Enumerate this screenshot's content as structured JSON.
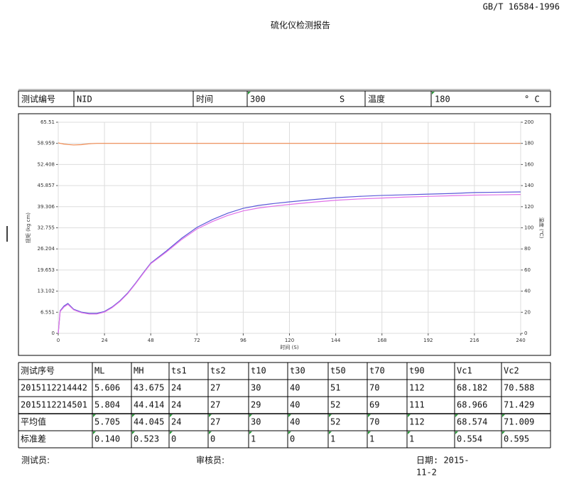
{
  "header": {
    "standard": "GB/T 16584-1996",
    "title": "硫化仪检测报告"
  },
  "info": {
    "cells": [
      "测试编号",
      "NID",
      "时间",
      "300",
      "S",
      "温度",
      "180",
      "° C"
    ]
  },
  "chart_data": {
    "type": "line",
    "xlabel": "时间 (S)",
    "ylabel": "扭矩 (kg cm)",
    "y2label": "温度 (℃)",
    "x": [
      0,
      1,
      3,
      5,
      8,
      12,
      16,
      20,
      24,
      28,
      32,
      36,
      40,
      44,
      48,
      56,
      64,
      72,
      80,
      88,
      96,
      104,
      112,
      120,
      132,
      144,
      156,
      168,
      180,
      192,
      204,
      216,
      228,
      240
    ],
    "xlim": [
      0,
      240
    ],
    "xticks": [
      0,
      24,
      48,
      72,
      96,
      120,
      144,
      168,
      192,
      216,
      240
    ],
    "ylim": [
      0,
      65.51
    ],
    "yticks": [
      0,
      6.551,
      13.102,
      19.653,
      26.204,
      32.755,
      39.306,
      45.857,
      52.408,
      58.959,
      65.51
    ],
    "y2lim": [
      0,
      200
    ],
    "y2ticks": [
      0,
      20,
      40,
      60,
      80,
      100,
      120,
      140,
      160,
      180,
      200
    ],
    "grid": true,
    "series": [
      {
        "color": "#5a5ad8",
        "values": [
          0,
          7,
          8.5,
          9.3,
          7.5,
          6.6,
          6.2,
          6.2,
          6.8,
          8.2,
          10.1,
          12.5,
          15.5,
          18.7,
          21.8,
          25.5,
          29.5,
          32.9,
          35.3,
          37.3,
          38.8,
          39.7,
          40.3,
          40.8,
          41.5,
          42.1,
          42.5,
          42.8,
          43.0,
          43.2,
          43.4,
          43.7,
          43.8,
          43.9
        ]
      },
      {
        "color": "#e070e8",
        "values": [
          0,
          6.8,
          8.2,
          9.0,
          7.3,
          6.4,
          6.0,
          6.0,
          6.6,
          8.0,
          9.9,
          12.3,
          15.3,
          18.5,
          21.6,
          25.2,
          29.1,
          32.4,
          34.7,
          36.6,
          38.0,
          38.9,
          39.5,
          40.0,
          40.7,
          41.3,
          41.7,
          42.0,
          42.3,
          42.5,
          42.7,
          42.9,
          43.0,
          43.1
        ]
      },
      {
        "color": "#f08a50",
        "axis": "y2",
        "values": [
          180.5,
          180,
          179.3,
          178.9,
          178.5,
          178.8,
          179.6,
          180,
          180,
          180,
          180,
          180,
          180,
          180,
          180,
          180,
          180,
          180,
          180,
          180,
          180,
          180,
          180,
          180,
          180,
          180,
          180,
          180,
          180,
          180,
          180,
          180,
          180,
          180
        ]
      }
    ]
  },
  "table": {
    "header": [
      "测试序号",
      "ML",
      "MH",
      "ts1",
      "ts2",
      "t10",
      "t30",
      "t50",
      "t70",
      "t90",
      "Vc1",
      "Vc2"
    ],
    "rows": [
      [
        "2015112214442",
        "5.606",
        "43.675",
        "24",
        "27",
        "30",
        "40",
        "51",
        "70",
        "112",
        "68.182",
        "70.588"
      ],
      [
        "2015112214501",
        "5.804",
        "44.414",
        "24",
        "27",
        "29",
        "40",
        "52",
        "69",
        "111",
        "68.966",
        "71.429"
      ],
      [
        "平均值",
        "5.705",
        "44.045",
        "24",
        "27",
        "30",
        "40",
        "52",
        "70",
        "112",
        "68.574",
        "71.009"
      ],
      [
        "标准差",
        "0.140",
        "0.523",
        "0",
        "0",
        "1",
        "0",
        "1",
        "1",
        "1",
        "0.554",
        "0.595"
      ]
    ]
  },
  "footer": {
    "tester": "测试员:",
    "reviewer": "审核员:",
    "date": [
      "日期: 2015-",
      "11-2"
    ]
  }
}
